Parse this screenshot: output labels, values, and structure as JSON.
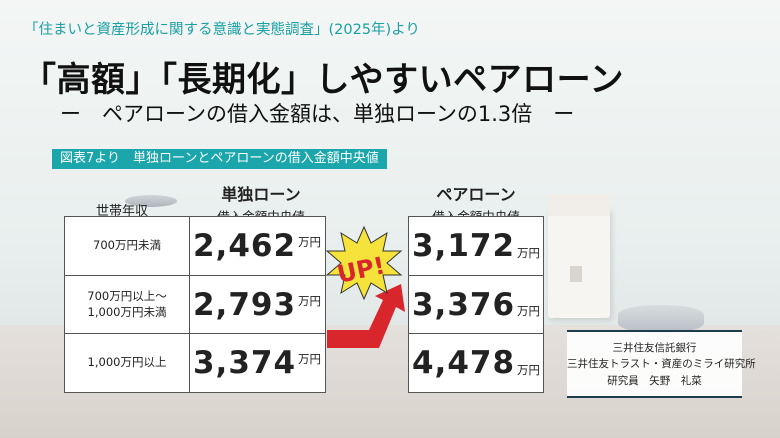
{
  "source": "「住まいと資産形成に関する意識と実態調査」(2025年)より",
  "title": "「高額」「長期化」しやすいペアローン",
  "subtitle": "ー　ペアローンの借入金額は、単独ローンの1.3倍　ー",
  "figure_label": "図表7より　単独ローンとペアローンの借入金額中央値",
  "income_header": "世帯年収",
  "single_header": {
    "title": "単独ローン",
    "sub": "借入金額中央値"
  },
  "pair_header": {
    "title": "ペアローン",
    "sub": "借入金額中央値"
  },
  "unit": "万円",
  "rows": [
    {
      "income_line1": "700万円未満",
      "income_line2": "",
      "single": "2,462",
      "pair": "3,172"
    },
    {
      "income_line1": "700万円以上～",
      "income_line2": "1,000万円未満",
      "single": "2,793",
      "pair": "3,376"
    },
    {
      "income_line1": "1,000万円以上",
      "income_line2": "",
      "single": "3,374",
      "pair": "4,478"
    }
  ],
  "badge": "UP!",
  "credit": {
    "line1": "三井住友信託銀行",
    "line2": "三井住友トラスト・資産のミライ研究所",
    "line3": "研究員　矢野　礼菜"
  },
  "colors": {
    "accent": "#1aa6ab",
    "burst": "#f5e23a",
    "arrow": "#d9262c"
  }
}
